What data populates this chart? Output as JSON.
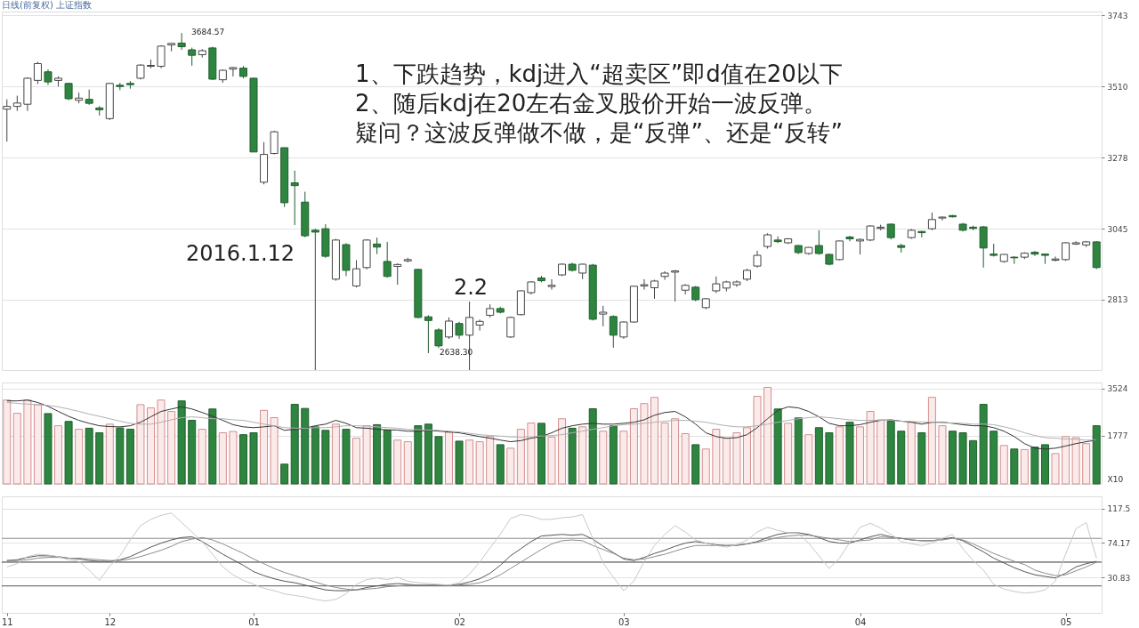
{
  "chart_data": [
    {
      "type": "candlestick",
      "title": "日线(前复权) 上证指数",
      "categories": [
        "11",
        null,
        null,
        null,
        null,
        null,
        null,
        null,
        null,
        null,
        "12",
        null,
        null,
        null,
        null,
        null,
        null,
        null,
        null,
        null,
        null,
        null,
        null,
        null,
        "01",
        null,
        null,
        null,
        null,
        null,
        null,
        null,
        null,
        null,
        null,
        null,
        null,
        null,
        null,
        null,
        null,
        null,
        null,
        null,
        "02",
        null,
        null,
        null,
        null,
        null,
        null,
        null,
        null,
        null,
        null,
        null,
        null,
        null,
        null,
        null,
        "03",
        null,
        null,
        null,
        null,
        null,
        null,
        null,
        null,
        null,
        null,
        null,
        null,
        null,
        null,
        null,
        null,
        null,
        null,
        null,
        null,
        null,
        null,
        "04",
        null,
        null,
        null,
        null,
        null,
        null,
        null,
        null,
        null,
        null,
        null,
        null,
        null,
        null,
        null,
        null,
        null,
        null,
        null,
        "05",
        null,
        null,
        null
      ],
      "ohlc": [
        [
          3436,
          3468,
          3330,
          3445
        ],
        [
          3445,
          3480,
          3430,
          3456
        ],
        [
          3452,
          3540,
          3430,
          3537
        ],
        [
          3530,
          3591,
          3518,
          3585
        ],
        [
          3558,
          3566,
          3515,
          3525
        ],
        [
          3530,
          3543,
          3510,
          3537
        ],
        [
          3520,
          3522,
          3465,
          3470
        ],
        [
          3465,
          3490,
          3455,
          3472
        ],
        [
          3468,
          3500,
          3450,
          3455
        ],
        [
          3440,
          3446,
          3415,
          3434
        ],
        [
          3405,
          3522,
          3400,
          3520
        ],
        [
          3514,
          3522,
          3498,
          3510
        ],
        [
          3520,
          3528,
          3503,
          3516
        ],
        [
          3537,
          3583,
          3533,
          3580
        ],
        [
          3576,
          3598,
          3570,
          3579
        ],
        [
          3576,
          3645,
          3570,
          3642
        ],
        [
          3646,
          3653,
          3625,
          3651
        ],
        [
          3652,
          3684.57,
          3630,
          3640
        ],
        [
          3630,
          3637,
          3578,
          3612
        ],
        [
          3614,
          3632,
          3605,
          3627
        ],
        [
          3636,
          3640,
          3531,
          3534
        ],
        [
          3532,
          3566,
          3522,
          3563
        ],
        [
          3567,
          3574,
          3543,
          3572
        ],
        [
          3570,
          3577,
          3537,
          3543
        ],
        [
          3537,
          3539,
          3296,
          3296
        ],
        [
          3197,
          3328,
          3190,
          3288
        ],
        [
          3291,
          3365,
          3288,
          3362
        ],
        [
          3310,
          3310,
          3116,
          3130
        ],
        [
          3195,
          3235,
          3057,
          3186
        ],
        [
          3132,
          3166,
          3017,
          3022
        ],
        [
          3040,
          3045,
          2985,
          3034
        ],
        [
          3045,
          3060,
          2950,
          2955
        ],
        [
          2880,
          3012,
          2875,
          3008
        ],
        [
          2993,
          2998,
          2890,
          2909
        ],
        [
          2858,
          2942,
          2853,
          2914
        ],
        [
          2918,
          3011,
          2912,
          3008
        ],
        [
          2995,
          3016,
          2962,
          2985
        ],
        [
          2938,
          3002,
          2885,
          2889
        ],
        [
          2922,
          2932,
          2862,
          2928
        ],
        [
          2940,
          2950,
          2935,
          2944
        ],
        [
          2912,
          2914,
          2752,
          2755
        ],
        [
          2757,
          2762,
          2638.3,
          2745
        ],
        [
          2714,
          2720,
          2655,
          2662
        ],
        [
          2691,
          2755,
          2685,
          2743
        ],
        [
          2735,
          2741,
          2685,
          2697
        ],
        [
          2697,
          2757,
          2692,
          2755
        ],
        [
          2730,
          2748,
          2712,
          2742
        ],
        [
          2762,
          2798,
          2755,
          2784
        ],
        [
          2784,
          2790,
          2768,
          2772
        ],
        [
          2691,
          2758,
          2688,
          2755
        ],
        [
          2764,
          2843,
          2762,
          2842
        ],
        [
          2836,
          2873,
          2830,
          2871
        ],
        [
          2884,
          2891,
          2870,
          2875
        ],
        [
          2856,
          2880,
          2846,
          2860
        ],
        [
          2894,
          2932,
          2890,
          2929
        ],
        [
          2929,
          2934,
          2905,
          2909
        ],
        [
          2900,
          2931,
          2880,
          2929
        ],
        [
          2926,
          2930,
          2745,
          2749
        ],
        [
          2766,
          2793,
          2726,
          2772
        ],
        [
          2758,
          2762,
          2656,
          2697
        ],
        [
          2691,
          2742,
          2685,
          2740
        ],
        [
          2740,
          2858,
          2738,
          2857
        ],
        [
          2858,
          2880,
          2846,
          2862
        ],
        [
          2852,
          2878,
          2816,
          2874
        ],
        [
          2889,
          2906,
          2878,
          2900
        ],
        [
          2903,
          2910,
          2807,
          2907
        ],
        [
          2844,
          2864,
          2830,
          2860
        ],
        [
          2854,
          2858,
          2808,
          2813
        ],
        [
          2787,
          2818,
          2782,
          2816
        ],
        [
          2842,
          2889,
          2835,
          2865
        ],
        [
          2851,
          2875,
          2840,
          2871
        ],
        [
          2862,
          2876,
          2855,
          2871
        ],
        [
          2880,
          2914,
          2874,
          2909
        ],
        [
          2923,
          2973,
          2918,
          2958
        ],
        [
          2987,
          3030,
          2980,
          3025
        ],
        [
          3008,
          3020,
          2998,
          3003
        ],
        [
          2999,
          3014,
          2995,
          3012
        ],
        [
          2990,
          2992,
          2962,
          2967
        ],
        [
          2964,
          2985,
          2960,
          2984
        ],
        [
          2990,
          3040,
          2960,
          2964
        ],
        [
          2961,
          2964,
          2925,
          2929
        ],
        [
          2944,
          3006,
          2942,
          3005
        ],
        [
          3018,
          3022,
          3004,
          3012
        ],
        [
          3005,
          3013,
          2961,
          3010
        ],
        [
          3008,
          3056,
          3004,
          3054
        ],
        [
          3046,
          3058,
          3040,
          3050
        ],
        [
          3060,
          3062,
          3010,
          3016
        ],
        [
          2990,
          2996,
          2967,
          2984
        ],
        [
          3016,
          3044,
          3012,
          3040
        ],
        [
          3036,
          3038,
          3017,
          3032
        ],
        [
          3045,
          3098,
          3040,
          3075
        ],
        [
          3080,
          3085,
          3072,
          3083
        ],
        [
          3088,
          3090,
          3082,
          3084
        ],
        [
          3060,
          3064,
          3036,
          3040
        ],
        [
          3050,
          3055,
          3040,
          3046
        ],
        [
          3051,
          3054,
          2918,
          2982
        ],
        [
          2962,
          2996,
          2954,
          2958
        ],
        [
          2938,
          2962,
          2934,
          2961
        ],
        [
          2952,
          2955,
          2930,
          2950
        ],
        [
          2952,
          2968,
          2946,
          2965
        ],
        [
          2968,
          2972,
          2956,
          2962
        ],
        [
          2962,
          2964,
          2930,
          2958
        ],
        [
          2942,
          2954,
          2938,
          2946
        ],
        [
          2944,
          3001,
          2940,
          2999
        ],
        [
          2995,
          3004,
          2992,
          2999
        ],
        [
          2992,
          3005,
          2985,
          3002
        ],
        [
          3002,
          3004,
          2913,
          2918
        ]
      ],
      "colors": [
        "#ffffff",
        "#ffffff",
        "#ffffff",
        "#ffffff",
        "#2e8540",
        "#ffffff",
        "#2e8540",
        "#ffffff",
        "#2e8540",
        "#2e8540",
        "#ffffff",
        "#2e8540",
        "#2e8540",
        "#ffffff",
        "#ffffff",
        "#ffffff",
        "#ffffff",
        "#2e8540",
        "#2e8540",
        "#ffffff",
        "#2e8540",
        "#ffffff",
        "#ffffff",
        "#2e8540",
        "#2e8540",
        "#ffffff",
        "#ffffff",
        "#2e8540",
        "#2e8540",
        "#2e8540",
        "#2e8540",
        "#2e8540",
        "#ffffff",
        "#2e8540",
        "#ffffff",
        "#ffffff",
        "#2e8540",
        "#2e8540",
        "#ffffff",
        "#ffffff",
        "#2e8540",
        "#2e8540",
        "#2e8540",
        "#ffffff",
        "#2e8540",
        "#ffffff",
        "#ffffff",
        "#ffffff",
        "#2e8540",
        "#ffffff",
        "#ffffff",
        "#ffffff",
        "#2e8540",
        "#ffffff",
        "#ffffff",
        "#2e8540",
        "#ffffff",
        "#2e8540",
        "#ffffff",
        "#2e8540",
        "#ffffff",
        "#ffffff",
        "#ffffff",
        "#ffffff",
        "#ffffff",
        "#ffffff",
        "#ffffff",
        "#2e8540",
        "#ffffff",
        "#ffffff",
        "#ffffff",
        "#ffffff",
        "#ffffff",
        "#ffffff",
        "#ffffff",
        "#2e8540",
        "#ffffff",
        "#2e8540",
        "#ffffff",
        "#2e8540",
        "#2e8540",
        "#ffffff",
        "#2e8540",
        "#ffffff",
        "#ffffff",
        "#ffffff",
        "#2e8540",
        "#2e8540",
        "#ffffff",
        "#2e8540",
        "#ffffff",
        "#ffffff",
        "#2e8540",
        "#2e8540",
        "#2e8540",
        "#2e8540",
        "#2e8540",
        "#ffffff",
        "#2e8540",
        "#ffffff",
        "#2e8540",
        "#2e8540",
        "#ffffff",
        "#ffffff",
        "#ffffff",
        "#ffffff",
        "#2e8540"
      ],
      "ylim": [
        2583,
        3755
      ],
      "yticks": [
        3743,
        3510,
        3278,
        3045,
        2813
      ],
      "grid": "y",
      "tick_labels": "y",
      "annotations": [
        "1、下跌趋势，kdj进入“超卖区”即d值在20以下",
        "2、随后kdj在20左右金叉股价开始一波反弹。",
        "疑问？这波反弹做不做，是“反弹”、还是“反转”",
        "2016.1.12",
        "2.2",
        "3684.57",
        "2638.30"
      ]
    },
    {
      "type": "bar",
      "categories": [
        "11",
        null,
        null,
        null,
        null,
        null,
        null,
        null,
        null,
        null,
        "12",
        null,
        null,
        null,
        null,
        null,
        null,
        null,
        null,
        null,
        null,
        null,
        null,
        null,
        "01",
        null,
        null,
        null,
        null,
        null,
        null,
        null,
        null,
        null,
        null,
        null,
        null,
        null,
        null,
        null,
        null,
        null,
        null,
        null,
        "02",
        null,
        null,
        null,
        null,
        null,
        null,
        null,
        null,
        null,
        null,
        null,
        null,
        null,
        null,
        null,
        "03",
        null,
        null,
        null,
        null,
        null,
        null,
        null,
        null,
        null,
        null,
        null,
        null,
        null,
        null,
        null,
        null,
        null,
        null,
        null,
        null,
        null,
        null,
        "04",
        null,
        null,
        null,
        null,
        null,
        null,
        null,
        null,
        null,
        null,
        null,
        null,
        null,
        null,
        null,
        null,
        null,
        null,
        null,
        "05",
        null,
        null,
        null
      ],
      "series": [
        {
          "type": "bar",
          "values": [
            3100,
            2610,
            3100,
            2930,
            2600,
            2150,
            2310,
            2020,
            2060,
            1890,
            2210,
            2070,
            2020,
            2930,
            2810,
            3100,
            2680,
            3070,
            2350,
            2020,
            2770,
            1890,
            1940,
            1820,
            1890,
            2720,
            2450,
            730,
            2940,
            2790,
            2110,
            1980,
            2210,
            2020,
            1690,
            2150,
            2190,
            1990,
            1620,
            1560,
            2150,
            2210,
            1750,
            1910,
            1580,
            1620,
            1560,
            1750,
            1450,
            1320,
            2020,
            2250,
            2240,
            1730,
            2410,
            2060,
            2110,
            2780,
            1950,
            2150,
            1950,
            2780,
            2970,
            3200,
            2250,
            2410,
            1860,
            1450,
            1290,
            2020,
            1690,
            1890,
            2080,
            3240,
            3570,
            2770,
            2240,
            2440,
            1820,
            2080,
            1890,
            2110,
            2280,
            2110,
            2680,
            2370,
            2320,
            1950,
            2280,
            1890,
            3200,
            2150,
            1950,
            1890,
            1600,
            2940,
            1950,
            1420,
            1290,
            1270,
            1360,
            1450,
            1120,
            1750,
            1710,
            1490,
            2150
          ],
          "colors": [
            "#fbeaea",
            "#fbeaea",
            "#fbeaea",
            "#fbeaea",
            "#2e8540",
            "#fbeaea",
            "#2e8540",
            "#fbeaea",
            "#2e8540",
            "#2e8540",
            "#fbeaea",
            "#2e8540",
            "#2e8540",
            "#fbeaea",
            "#fbeaea",
            "#fbeaea",
            "#fbeaea",
            "#2e8540",
            "#2e8540",
            "#fbeaea",
            "#2e8540",
            "#fbeaea",
            "#fbeaea",
            "#2e8540",
            "#2e8540",
            "#fbeaea",
            "#fbeaea",
            "#2e8540",
            "#2e8540",
            "#2e8540",
            "#2e8540",
            "#2e8540",
            "#fbeaea",
            "#2e8540",
            "#fbeaea",
            "#fbeaea",
            "#2e8540",
            "#2e8540",
            "#fbeaea",
            "#fbeaea",
            "#2e8540",
            "#2e8540",
            "#2e8540",
            "#fbeaea",
            "#2e8540",
            "#fbeaea",
            "#fbeaea",
            "#fbeaea",
            "#2e8540",
            "#fbeaea",
            "#fbeaea",
            "#fbeaea",
            "#2e8540",
            "#fbeaea",
            "#fbeaea",
            "#2e8540",
            "#fbeaea",
            "#2e8540",
            "#fbeaea",
            "#2e8540",
            "#fbeaea",
            "#fbeaea",
            "#fbeaea",
            "#fbeaea",
            "#fbeaea",
            "#fbeaea",
            "#fbeaea",
            "#2e8540",
            "#fbeaea",
            "#fbeaea",
            "#fbeaea",
            "#fbeaea",
            "#fbeaea",
            "#fbeaea",
            "#fbeaea",
            "#2e8540",
            "#fbeaea",
            "#2e8540",
            "#fbeaea",
            "#2e8540",
            "#2e8540",
            "#fbeaea",
            "#2e8540",
            "#fbeaea",
            "#fbeaea",
            "#fbeaea",
            "#2e8540",
            "#2e8540",
            "#fbeaea",
            "#2e8540",
            "#fbeaea",
            "#fbeaea",
            "#2e8540",
            "#2e8540",
            "#2e8540",
            "#2e8540",
            "#2e8540",
            "#fbeaea",
            "#2e8540",
            "#fbeaea",
            "#2e8540",
            "#2e8540",
            "#fbeaea",
            "#fbeaea",
            "#fbeaea",
            "#fbeaea",
            "#2e8540"
          ]
        },
        {
          "type": "line",
          "color": "#333333",
          "values": [
            3070,
            3070,
            3100,
            3010,
            2870,
            2680,
            2500,
            2350,
            2240,
            2150,
            2120,
            2110,
            2150,
            2280,
            2480,
            2680,
            2770,
            2850,
            2770,
            2640,
            2500,
            2350,
            2190,
            2110,
            2080,
            2110,
            2150,
            1980,
            2020,
            2060,
            2150,
            2210,
            2350,
            2240,
            2080,
            2060,
            2020,
            2000,
            1990,
            1950,
            1950,
            1980,
            1950,
            1920,
            1890,
            1820,
            1750,
            1690,
            1620,
            1560,
            1600,
            1690,
            1750,
            1890,
            2060,
            2150,
            2210,
            2240,
            2210,
            2210,
            2240,
            2280,
            2370,
            2540,
            2640,
            2680,
            2480,
            2210,
            1890,
            1750,
            1690,
            1710,
            1820,
            2080,
            2410,
            2720,
            2850,
            2810,
            2680,
            2480,
            2240,
            2150,
            2150,
            2190,
            2280,
            2350,
            2370,
            2320,
            2280,
            2210,
            2280,
            2280,
            2240,
            2190,
            2150,
            2150,
            2080,
            1950,
            1750,
            1490,
            1320,
            1290,
            1320,
            1400,
            1490,
            1560,
            1620
          ]
        },
        {
          "type": "line",
          "color": "#b0b0b0",
          "values": [
            3010,
            2980,
            2950,
            2930,
            2900,
            2850,
            2770,
            2680,
            2580,
            2500,
            2410,
            2320,
            2240,
            2210,
            2210,
            2280,
            2370,
            2450,
            2480,
            2450,
            2410,
            2410,
            2370,
            2350,
            2280,
            2210,
            2150,
            2080,
            2060,
            2060,
            2080,
            2080,
            2110,
            2150,
            2150,
            2140,
            2110,
            2080,
            2060,
            2020,
            2000,
            1990,
            1980,
            1950,
            1920,
            1870,
            1820,
            1790,
            1770,
            1740,
            1730,
            1740,
            1770,
            1790,
            1820,
            1890,
            1950,
            2020,
            2080,
            2150,
            2190,
            2210,
            2240,
            2280,
            2320,
            2350,
            2350,
            2320,
            2280,
            2210,
            2150,
            2110,
            2110,
            2150,
            2210,
            2280,
            2350,
            2410,
            2450,
            2480,
            2450,
            2410,
            2370,
            2350,
            2350,
            2350,
            2350,
            2320,
            2310,
            2290,
            2280,
            2270,
            2250,
            2240,
            2210,
            2210,
            2190,
            2110,
            2020,
            1890,
            1790,
            1710,
            1690,
            1660,
            1650,
            1620,
            1620
          ]
        }
      ],
      "ylim": [
        0,
        3750
      ],
      "yticks": [
        3524,
        1777
      ],
      "ylabel": "X10",
      "grid": "y",
      "tick_labels": "y"
    },
    {
      "type": "line",
      "categories": [
        "11",
        null,
        null,
        null,
        null,
        null,
        null,
        null,
        null,
        null,
        "12",
        null,
        null,
        null,
        null,
        null,
        null,
        null,
        null,
        null,
        null,
        null,
        null,
        null,
        "01",
        null,
        null,
        null,
        null,
        null,
        null,
        null,
        null,
        null,
        null,
        null,
        null,
        null,
        null,
        null,
        null,
        null,
        null,
        null,
        "02",
        null,
        null,
        null,
        null,
        null,
        null,
        null,
        null,
        null,
        null,
        null,
        null,
        null,
        null,
        null,
        "03",
        null,
        null,
        null,
        null,
        null,
        null,
        null,
        null,
        null,
        null,
        null,
        null,
        null,
        null,
        null,
        null,
        null,
        null,
        null,
        null,
        null,
        null,
        "04",
        null,
        null,
        null,
        null,
        null,
        null,
        null,
        null,
        null,
        null,
        null,
        null,
        null,
        null,
        null,
        null,
        null,
        null,
        null,
        "05",
        null,
        null,
        null
      ],
      "series": [
        {
          "color": "#555555",
          "values": [
            52,
            53,
            56,
            58,
            58,
            57,
            55,
            54,
            52,
            51,
            51,
            53,
            57,
            63,
            69,
            74,
            78,
            81,
            82,
            76,
            68,
            60,
            53,
            46,
            38,
            33,
            29,
            26,
            24,
            21,
            18,
            15,
            14,
            14,
            15,
            18,
            20,
            22,
            23,
            22,
            21,
            21,
            21,
            21,
            22,
            25,
            29,
            36,
            46,
            58,
            67,
            76,
            83,
            84,
            85,
            84,
            85,
            79,
            70,
            62,
            54,
            52,
            56,
            61,
            65,
            70,
            74,
            76,
            74,
            72,
            71,
            71,
            73,
            76,
            81,
            85,
            87,
            87,
            85,
            81,
            76,
            74,
            74,
            78,
            82,
            85,
            82,
            80,
            78,
            77,
            77,
            79,
            81,
            77,
            70,
            63,
            55,
            49,
            43,
            38,
            34,
            32,
            30,
            36,
            44,
            48,
            51
          ]
        },
        {
          "color": "#8c8c8c",
          "values": [
            52,
            52,
            53,
            55,
            56,
            56,
            55,
            55,
            54,
            53,
            52,
            52,
            54,
            57,
            61,
            65,
            70,
            76,
            79,
            81,
            78,
            73,
            67,
            61,
            54,
            48,
            42,
            37,
            33,
            29,
            25,
            21,
            18,
            16,
            15,
            16,
            17,
            19,
            20,
            21,
            21,
            21,
            21,
            21,
            21,
            22,
            24,
            28,
            34,
            42,
            50,
            58,
            66,
            73,
            77,
            78,
            77,
            71,
            66,
            61,
            55,
            53,
            54,
            57,
            60,
            64,
            68,
            71,
            71,
            71,
            71,
            72,
            73,
            75,
            78,
            81,
            83,
            84,
            84,
            82,
            80,
            78,
            76,
            77,
            78,
            82,
            81,
            80,
            78,
            77,
            77,
            78,
            80,
            78,
            73,
            67,
            61,
            56,
            51,
            47,
            40,
            36,
            33,
            34,
            39,
            44,
            50
          ]
        },
        {
          "color": "#c8c8c8",
          "values": [
            44,
            48,
            57,
            60,
            59,
            57,
            53,
            51,
            40,
            27,
            45,
            58,
            78,
            96,
            104,
            109,
            112,
            100,
            88,
            76,
            60,
            44,
            34,
            27,
            22,
            17,
            14,
            10,
            8,
            6,
            3,
            1,
            3,
            10,
            22,
            28,
            30,
            28,
            31,
            26,
            24,
            23,
            22,
            21,
            24,
            35,
            50,
            68,
            85,
            105,
            110,
            108,
            104,
            104,
            106,
            107,
            110,
            80,
            49,
            31,
            14,
            26,
            51,
            71,
            85,
            96,
            88,
            78,
            74,
            71,
            69,
            72,
            78,
            88,
            94,
            90,
            87,
            86,
            74,
            58,
            42,
            55,
            75,
            94,
            99,
            93,
            85,
            76,
            73,
            71,
            74,
            80,
            85,
            67,
            52,
            40,
            22,
            16,
            13,
            11,
            12,
            15,
            26,
            60,
            92,
            100,
            55
          ]
        }
      ],
      "ylim": [
        -14,
        133
      ],
      "yticks": [
        117.5,
        74.17,
        30.83
      ],
      "grid": "y",
      "ref_lines": [
        {
          "axis": "y",
          "value": 80,
          "color": "#8a8a8a"
        },
        {
          "axis": "y",
          "value": 50,
          "color": "#333333"
        },
        {
          "axis": "y",
          "value": 20,
          "color": "#555555"
        }
      ]
    }
  ]
}
